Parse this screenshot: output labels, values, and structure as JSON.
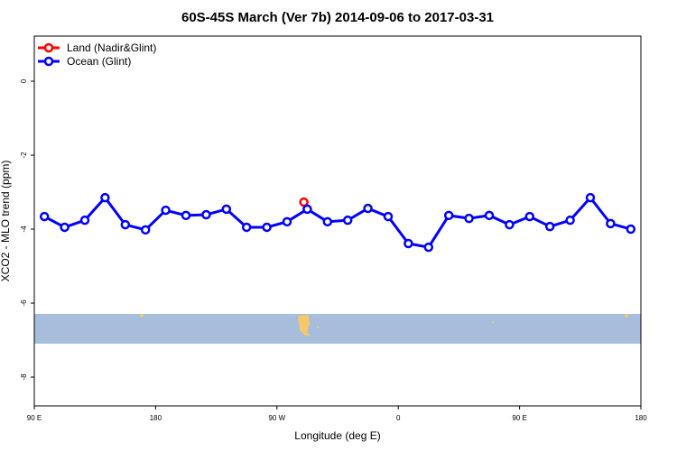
{
  "chart_data": {
    "type": "line",
    "title": "60S-45S March (Ver 7b)   2014-09-06 to 2017-03-31",
    "x_label": "Longitude (deg E)",
    "y_label": "XCO2 - MLO trend (ppm)",
    "xlim": [
      90,
      540
    ],
    "ylim": [
      -8.78,
      1.22
    ],
    "xticks": [
      {
        "value": 90,
        "label": "90 E"
      },
      {
        "value": 180,
        "label": "180"
      },
      {
        "value": 270,
        "label": "90 W"
      },
      {
        "value": 360,
        "label": "0"
      },
      {
        "value": 450,
        "label": "90 E"
      },
      {
        "value": 540,
        "label": "180"
      }
    ],
    "yticks": [
      0,
      -2,
      -4,
      -6,
      -8
    ],
    "legend": "top-left",
    "series": [
      {
        "name": "Land (Nadir&Glint)",
        "color": "#ff0000",
        "x": [
          290
        ],
        "values": [
          -3.27
        ]
      },
      {
        "name": "Ocean (Glint)",
        "color": "#0000ff",
        "x": [
          97.5,
          112.5,
          127.5,
          142.5,
          157.5,
          172.5,
          187.5,
          202.5,
          217.5,
          232.5,
          247.5,
          262.5,
          277.5,
          292.5,
          307.5,
          322.5,
          337.5,
          352.5,
          367.5,
          382.5,
          397.5,
          412.5,
          427.5,
          442.5,
          457.5,
          472.5,
          487.5,
          502.5,
          517.5,
          532.5
        ],
        "values": [
          -3.66,
          -3.95,
          -3.76,
          -3.15,
          -3.88,
          -4.02,
          -3.49,
          -3.63,
          -3.61,
          -3.46,
          -3.95,
          -3.95,
          -3.8,
          -3.46,
          -3.8,
          -3.76,
          -3.44,
          -3.66,
          -4.39,
          -4.49,
          -3.63,
          -3.71,
          -3.63,
          -3.88,
          -3.66,
          -3.93,
          -3.76,
          -3.15,
          -3.85,
          -4.0
        ]
      }
    ]
  }
}
